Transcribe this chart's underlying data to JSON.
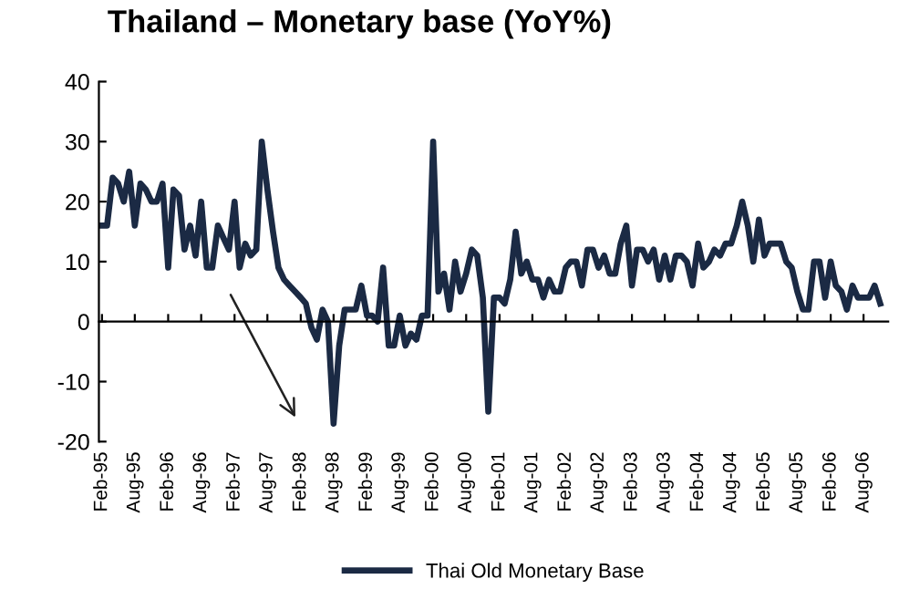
{
  "chart_data": {
    "type": "line",
    "title": "Thailand – Monetary base (YoY%)",
    "x": [
      "1995-02",
      "1995-03",
      "1995-04",
      "1995-05",
      "1995-06",
      "1995-07",
      "1995-08",
      "1995-09",
      "1995-10",
      "1995-11",
      "1995-12",
      "1996-01",
      "1996-02",
      "1996-03",
      "1996-04",
      "1996-05",
      "1996-06",
      "1996-07",
      "1996-08",
      "1996-09",
      "1996-10",
      "1996-11",
      "1996-12",
      "1997-01",
      "1997-02",
      "1997-03",
      "1997-04",
      "1997-05",
      "1997-06",
      "1997-07",
      "1997-08",
      "1997-09",
      "1997-10",
      "1997-11",
      "1997-12",
      "1998-01",
      "1998-02",
      "1998-03",
      "1998-04",
      "1998-05",
      "1998-06",
      "1998-07",
      "1998-08",
      "1998-09",
      "1998-10",
      "1998-11",
      "1998-12",
      "1999-01",
      "1999-02",
      "1999-03",
      "1999-04",
      "1999-05",
      "1999-06",
      "1999-07",
      "1999-08",
      "1999-09",
      "1999-10",
      "1999-11",
      "1999-12",
      "2000-01",
      "2000-02",
      "2000-03",
      "2000-04",
      "2000-05",
      "2000-06",
      "2000-07",
      "2000-08",
      "2000-09",
      "2000-10",
      "2000-11",
      "2000-12",
      "2001-01",
      "2001-02",
      "2001-03",
      "2001-04",
      "2001-05",
      "2001-06",
      "2001-07",
      "2001-08",
      "2001-09",
      "2001-10",
      "2001-11",
      "2001-12",
      "2002-01",
      "2002-02",
      "2002-03",
      "2002-04",
      "2002-05",
      "2002-06",
      "2002-07",
      "2002-08",
      "2002-09",
      "2002-10",
      "2002-11",
      "2002-12",
      "2003-01",
      "2003-02",
      "2003-03",
      "2003-04",
      "2003-05",
      "2003-06",
      "2003-07",
      "2003-08",
      "2003-09",
      "2003-10",
      "2003-11",
      "2003-12",
      "2004-01",
      "2004-02",
      "2004-03",
      "2004-04",
      "2004-05",
      "2004-06",
      "2004-07",
      "2004-08",
      "2004-09",
      "2004-10",
      "2004-11",
      "2004-12",
      "2005-01",
      "2005-02",
      "2005-03",
      "2005-04",
      "2005-05",
      "2005-06",
      "2005-07",
      "2005-08",
      "2005-09",
      "2005-10",
      "2005-11",
      "2005-12",
      "2006-01",
      "2006-02",
      "2006-03",
      "2006-04",
      "2006-05",
      "2006-06",
      "2006-07",
      "2006-08",
      "2006-09",
      "2006-10",
      "2006-11"
    ],
    "series": [
      {
        "name": "Thai Old Monetary Base",
        "color": "#1b2a44",
        "values": [
          16,
          16,
          24,
          23,
          20,
          25,
          16,
          23,
          22,
          20,
          20,
          23,
          9,
          22,
          21,
          12,
          16,
          11,
          20,
          9,
          9,
          16,
          14,
          12,
          20,
          9,
          13,
          11,
          12,
          30,
          22,
          15,
          9,
          7,
          6,
          5,
          4,
          3,
          -1,
          -3,
          2,
          0,
          -17,
          -4,
          2,
          2,
          2,
          6,
          1,
          1,
          0,
          9,
          -4,
          -4,
          1,
          -4,
          -2,
          -3,
          1,
          1,
          30,
          5,
          8,
          2,
          10,
          5,
          8,
          12,
          11,
          4,
          -15,
          4,
          4,
          3,
          7,
          15,
          8,
          10,
          7,
          7,
          4,
          7,
          5,
          5,
          9,
          10,
          10,
          6,
          12,
          12,
          9,
          11,
          8,
          8,
          13,
          16,
          6,
          12,
          12,
          10,
          12,
          7,
          11,
          7,
          11,
          11,
          10,
          6,
          13,
          9,
          10,
          12,
          11,
          13,
          13,
          16,
          20,
          16,
          10,
          17,
          11,
          13,
          13,
          13,
          10,
          9,
          5,
          2,
          2,
          10,
          10,
          4,
          10,
          6,
          5,
          2,
          6,
          4,
          4,
          4,
          6,
          3
        ]
      }
    ],
    "xlim": [
      "1995-01-15",
      "2006-12-15"
    ],
    "xticks": [
      {
        "value": "1995-02",
        "label": "Feb-95"
      },
      {
        "value": "1995-08",
        "label": "Aug-95"
      },
      {
        "value": "1996-02",
        "label": "Feb-96"
      },
      {
        "value": "1996-08",
        "label": "Aug-96"
      },
      {
        "value": "1997-02",
        "label": "Feb-97"
      },
      {
        "value": "1997-08",
        "label": "Aug-97"
      },
      {
        "value": "1998-02",
        "label": "Feb-98"
      },
      {
        "value": "1998-08",
        "label": "Aug-98"
      },
      {
        "value": "1999-02",
        "label": "Feb-99"
      },
      {
        "value": "1999-08",
        "label": "Aug-99"
      },
      {
        "value": "2000-02",
        "label": "Feb-00"
      },
      {
        "value": "2000-08",
        "label": "Aug-00"
      },
      {
        "value": "2001-02",
        "label": "Feb-01"
      },
      {
        "value": "2001-08",
        "label": "Aug-01"
      },
      {
        "value": "2002-02",
        "label": "Feb-02"
      },
      {
        "value": "2002-08",
        "label": "Aug-02"
      },
      {
        "value": "2003-02",
        "label": "Feb-03"
      },
      {
        "value": "2003-08",
        "label": "Aug-03"
      },
      {
        "value": "2004-02",
        "label": "Feb-04"
      },
      {
        "value": "2004-08",
        "label": "Aug-04"
      },
      {
        "value": "2005-02",
        "label": "Feb-05"
      },
      {
        "value": "2005-08",
        "label": "Aug-05"
      },
      {
        "value": "2006-02",
        "label": "Feb-06"
      },
      {
        "value": "2006-08",
        "label": "Aug-06"
      }
    ],
    "ylim": [
      -20,
      40
    ],
    "yticks": [
      -20,
      -10,
      0,
      10,
      20,
      30,
      40
    ],
    "legend": "bottom",
    "marker": "none",
    "line_style": "solid"
  }
}
